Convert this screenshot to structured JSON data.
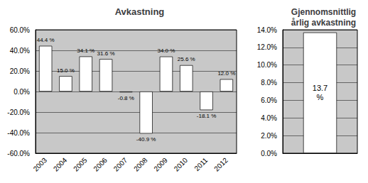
{
  "chart_data": [
    {
      "type": "bar",
      "title": "Avkastning",
      "categories": [
        "2003",
        "2004",
        "2005",
        "2006",
        "2007",
        "2008",
        "2009",
        "2010",
        "2011",
        "2012"
      ],
      "values": [
        44.4,
        15.0,
        34.1,
        31.6,
        -0.8,
        -40.9,
        34.0,
        25.6,
        -18.1,
        12.0
      ],
      "value_labels": [
        "44.4 %",
        "15.0 %",
        "34.1 %",
        "31.6 %",
        "-0.8 %",
        "-40.9 %",
        "34.0 %",
        "25.6 %",
        "-18.1 %",
        "12.0 %"
      ],
      "data_labels": true,
      "color": "white",
      "ylim": [
        -60.0,
        60.0
      ],
      "yticks": [
        {
          "value": -60.0,
          "label": "-60.0%"
        },
        {
          "value": -40.0,
          "label": "-40.0%"
        },
        {
          "value": -20.0,
          "label": "-20.0%"
        },
        {
          "value": 0.0,
          "label": "0.0%"
        },
        {
          "value": 20.0,
          "label": "20.0%"
        },
        {
          "value": 40.0,
          "label": "40.0%"
        },
        {
          "value": 60.0,
          "label": "60.0%"
        }
      ],
      "grid": true
    },
    {
      "type": "bar",
      "title": "Gjennomsnittlig\nårlig avkastning",
      "categories": [
        null
      ],
      "values": [
        13.7
      ],
      "value_labels": [
        "13.7\n%"
      ],
      "data_labels": true,
      "color": "white",
      "ylim": [
        0.0,
        14.0
      ],
      "yticks": [
        {
          "value": 0.0,
          "label": "0.0%"
        },
        {
          "value": 2.0,
          "label": "2.0%"
        },
        {
          "value": 4.0,
          "label": "4.0%"
        },
        {
          "value": 6.0,
          "label": "6.0%"
        },
        {
          "value": 8.0,
          "label": "8.0%"
        },
        {
          "value": 10.0,
          "label": "10.0%"
        },
        {
          "value": 12.0,
          "label": "12.0%"
        },
        {
          "value": 14.0,
          "label": "14.0%"
        }
      ],
      "grid": true,
      "tick_labels": "y"
    }
  ]
}
